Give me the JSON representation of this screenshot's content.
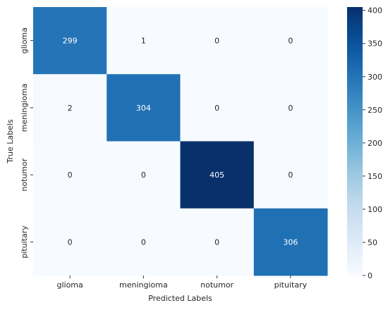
{
  "chart_data": {
    "type": "heatmap",
    "title": "",
    "xlabel": "Predicted Labels",
    "ylabel": "True Labels",
    "x_categories": [
      "glioma",
      "meningioma",
      "notumor",
      "pituitary"
    ],
    "y_categories": [
      "glioma",
      "meningioma",
      "notumor",
      "pituitary"
    ],
    "values": [
      [
        299,
        1,
        0,
        0
      ],
      [
        2,
        304,
        0,
        0
      ],
      [
        0,
        0,
        405,
        0
      ],
      [
        0,
        0,
        0,
        306
      ]
    ],
    "colormap": "Blues",
    "vmin": 0,
    "vmax": 405,
    "colorbar_ticks": [
      0,
      50,
      100,
      150,
      200,
      250,
      300,
      350,
      400
    ],
    "annotation_colors": {
      "light": "#ffffff",
      "dark": "#262626"
    }
  }
}
